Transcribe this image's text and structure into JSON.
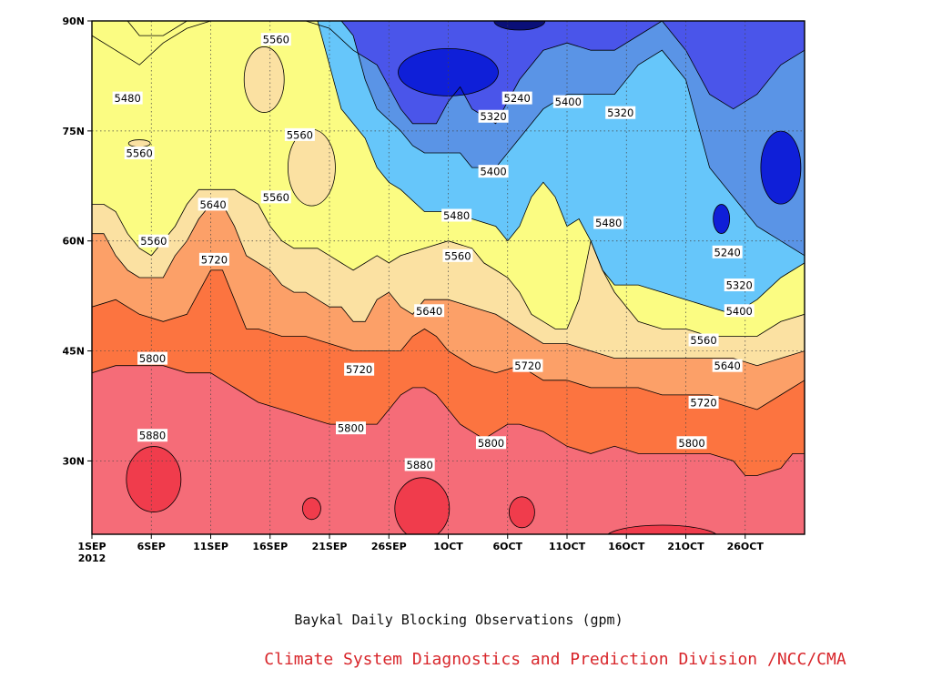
{
  "chart_data": {
    "type": "heatmap",
    "title": "Baykal Daily Blocking Observations (gpm)",
    "credit": "Climate System Diagnostics and Prediction Division /NCC/CMA",
    "x_axis": {
      "start_date": "1SEP 2012",
      "ticks": [
        "1SEP",
        "6SEP",
        "11SEP",
        "16SEP",
        "21SEP",
        "26SEP",
        "1OCT",
        "6OCT",
        "11OCT",
        "16OCT",
        "21OCT",
        "26OCT"
      ],
      "year_label": "2012",
      "range_days": [
        0,
        60
      ]
    },
    "y_axis": {
      "ticks": [
        "30N",
        "45N",
        "60N",
        "75N",
        "90N"
      ],
      "tick_values": [
        30,
        45,
        60,
        75,
        90
      ],
      "range": [
        20,
        90
      ]
    },
    "contour_levels": [
      5240,
      5320,
      5400,
      5480,
      5560,
      5640,
      5720,
      5800,
      5880
    ],
    "colors": {
      "below_5240": "#0f1fd8",
      "5240_5320": "#4a55ea",
      "5320_5400": "#5a94e6",
      "5400_5480": "#66c6fa",
      "5480_5560": "#fbfc82",
      "5560_5640": "#fbe1a2",
      "5640_5720": "#fca068",
      "5720_5800": "#fc7440",
      "5800_5880": "#f56c78",
      "above_5880": "#f03c4c",
      "darkest_core": "#0a0f78"
    },
    "contour_labels": [
      {
        "text": "5560",
        "day": 15.5,
        "lat": 87.5
      },
      {
        "text": "5480",
        "day": 3.0,
        "lat": 79.5
      },
      {
        "text": "5560",
        "day": 4.0,
        "lat": 72.0
      },
      {
        "text": "5560",
        "day": 17.5,
        "lat": 74.5
      },
      {
        "text": "5560",
        "day": 15.5,
        "lat": 66.0
      },
      {
        "text": "5640",
        "day": 10.2,
        "lat": 65.0
      },
      {
        "text": "5560",
        "day": 5.2,
        "lat": 60.0
      },
      {
        "text": "5720",
        "day": 10.3,
        "lat": 57.5
      },
      {
        "text": "5800",
        "day": 5.1,
        "lat": 44.0
      },
      {
        "text": "5720",
        "day": 22.5,
        "lat": 42.5
      },
      {
        "text": "5880",
        "day": 5.1,
        "lat": 33.5
      },
      {
        "text": "5800",
        "day": 21.8,
        "lat": 34.5
      },
      {
        "text": "5880",
        "day": 27.6,
        "lat": 29.5
      },
      {
        "text": "5800",
        "day": 33.6,
        "lat": 32.5
      },
      {
        "text": "5720",
        "day": 36.7,
        "lat": 43.0
      },
      {
        "text": "5640",
        "day": 28.4,
        "lat": 50.5
      },
      {
        "text": "5560",
        "day": 30.8,
        "lat": 58.0
      },
      {
        "text": "5480",
        "day": 30.7,
        "lat": 63.5
      },
      {
        "text": "5400",
        "day": 33.8,
        "lat": 69.5
      },
      {
        "text": "5320",
        "day": 33.8,
        "lat": 77.0
      },
      {
        "text": "5240",
        "day": 35.8,
        "lat": 79.5
      },
      {
        "text": "5400",
        "day": 40.1,
        "lat": 79.0
      },
      {
        "text": "5320",
        "day": 44.5,
        "lat": 77.5
      },
      {
        "text": "5480",
        "day": 43.5,
        "lat": 62.5
      },
      {
        "text": "5240",
        "day": 53.5,
        "lat": 58.5
      },
      {
        "text": "5320",
        "day": 54.5,
        "lat": 54.0
      },
      {
        "text": "5400",
        "day": 54.5,
        "lat": 50.5
      },
      {
        "text": "5560",
        "day": 51.5,
        "lat": 46.5
      },
      {
        "text": "5640",
        "day": 53.5,
        "lat": 43.0
      },
      {
        "text": "5720",
        "day": 51.5,
        "lat": 38.0
      },
      {
        "text": "5800",
        "day": 50.5,
        "lat": 32.5
      }
    ],
    "bands_approx": {
      "boundary_5880_5800": "south of ~30N, with enclosed highs near 6SEP, 28SEP, 6OCT and 20OCT",
      "boundary_5800_5720": "~42N on 1SEP descending to ~28N by end of OCT",
      "boundary_5720_5640": "~51N on 1SEP descending to ~37N late OCT",
      "boundary_5640_5560": "~61N on 1SEP, ~44N late OCT",
      "boundary_5560_5480": "~65N on 1SEP, ~47N late OCT",
      "boundary_5480_5400": "~90N early SEP, ~68N late SEP, ~60N early OCT, ~50N late OCT"
    }
  }
}
